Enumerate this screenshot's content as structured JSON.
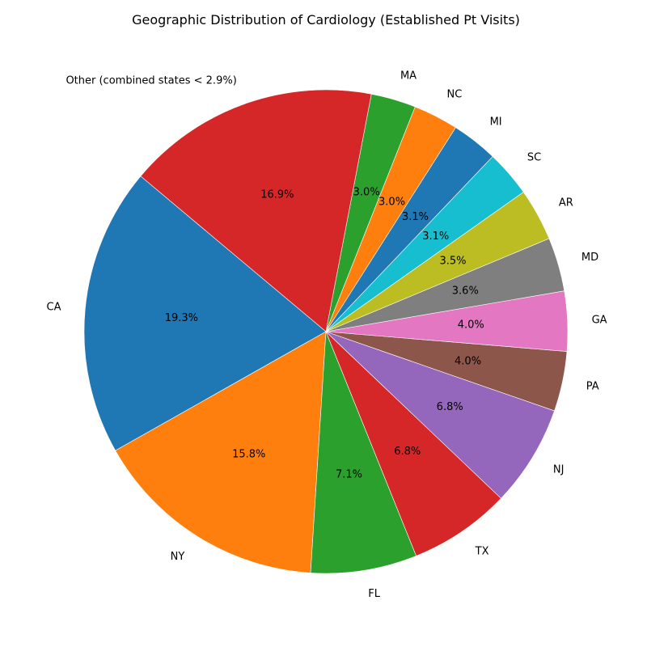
{
  "chart_data": {
    "type": "pie",
    "title": "Geographic Distribution of Cardiology (Established Pt Visits)",
    "start_angle_deg": 140,
    "direction": "counterclockwise",
    "labels": [
      "CA",
      "NY",
      "FL",
      "TX",
      "NJ",
      "PA",
      "GA",
      "MD",
      "AR",
      "SC",
      "MI",
      "NC",
      "MA",
      "Other (combined states < 2.9%)"
    ],
    "values": [
      19.3,
      15.8,
      7.1,
      6.8,
      6.8,
      4.0,
      4.0,
      3.6,
      3.5,
      3.1,
      3.1,
      3.0,
      3.0,
      16.9
    ],
    "value_labels": [
      "19.3%",
      "15.8%",
      "7.1%",
      "6.8%",
      "6.8%",
      "4.0%",
      "4.0%",
      "3.6%",
      "3.5%",
      "3.1%",
      "3.1%",
      "3.0%",
      "3.0%",
      "16.9%"
    ],
    "colors": [
      "#1f77b4",
      "#ff7f0e",
      "#2ca02c",
      "#d62728",
      "#9467bd",
      "#8c564b",
      "#e377c2",
      "#7f7f7f",
      "#bcbd22",
      "#17becf",
      "#1f77b4",
      "#ff7f0e",
      "#2ca02c",
      "#d62728"
    ]
  }
}
